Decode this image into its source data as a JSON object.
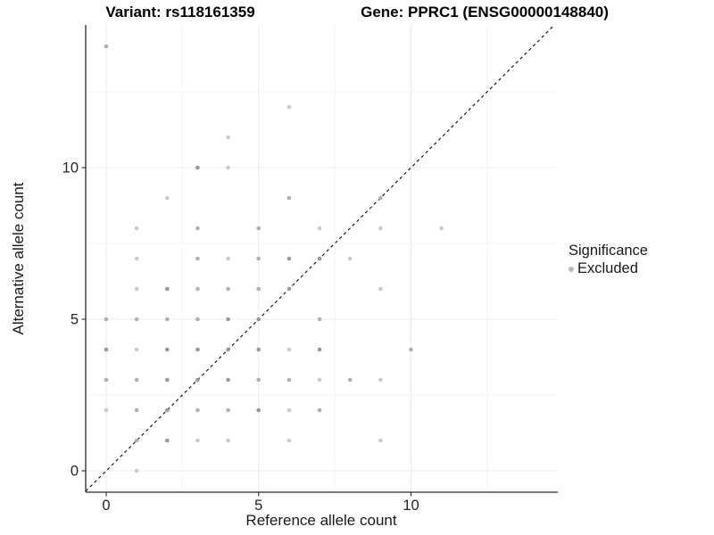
{
  "chart_data": {
    "type": "scatter",
    "title_variant": "Variant: rs118161359",
    "title_gene": "Gene: PPRC1 (ENSG00000148840)",
    "xlabel": "Reference allele count",
    "ylabel": "Alternative allele count",
    "x_ticks": [
      0,
      5,
      10
    ],
    "y_ticks": [
      0,
      5,
      10
    ],
    "x_minor_gridlines": [
      2.5,
      7.5,
      12.5
    ],
    "y_minor_gridlines": [
      2.5,
      7.5,
      12.5
    ],
    "xlim": [
      -0.67,
      14.82
    ],
    "ylim": [
      -0.71,
      14.71
    ],
    "grid": true,
    "identity_line": {
      "equation": "y = x",
      "style": "dashed",
      "color": "#1a1a1a"
    },
    "legend": {
      "title": "Significance",
      "position": "right",
      "entries": [
        {
          "label": "Excluded",
          "color": "#b9b9b9"
        }
      ]
    },
    "point_colors": {
      "l": "#cbcbcb",
      "m": "#b0b0b0",
      "d": "#999999"
    },
    "points": [
      [
        0,
        14,
        "m"
      ],
      [
        6,
        12,
        "l"
      ],
      [
        4,
        11,
        "l"
      ],
      [
        3,
        10,
        "d"
      ],
      [
        4,
        10,
        "l"
      ],
      [
        2,
        9,
        "l"
      ],
      [
        6,
        9,
        "m"
      ],
      [
        9,
        9,
        "m"
      ],
      [
        1,
        8,
        "l"
      ],
      [
        3,
        8,
        "m"
      ],
      [
        5,
        8,
        "m"
      ],
      [
        7,
        8,
        "l"
      ],
      [
        9,
        8,
        "l"
      ],
      [
        11,
        8,
        "l"
      ],
      [
        1,
        7,
        "l"
      ],
      [
        3,
        7,
        "m"
      ],
      [
        4,
        7,
        "l"
      ],
      [
        5,
        7,
        "m"
      ],
      [
        6,
        7,
        "d"
      ],
      [
        7,
        7,
        "d"
      ],
      [
        8,
        7,
        "l"
      ],
      [
        1,
        6,
        "l"
      ],
      [
        2,
        6,
        "d"
      ],
      [
        3,
        6,
        "m"
      ],
      [
        4,
        6,
        "m"
      ],
      [
        5,
        6,
        "m"
      ],
      [
        6,
        6,
        "d"
      ],
      [
        9,
        6,
        "l"
      ],
      [
        0,
        5,
        "m"
      ],
      [
        1,
        5,
        "m"
      ],
      [
        2,
        5,
        "m"
      ],
      [
        3,
        5,
        "m"
      ],
      [
        4,
        5,
        "d"
      ],
      [
        5,
        5,
        "d"
      ],
      [
        7,
        5,
        "m"
      ],
      [
        0,
        4,
        "d"
      ],
      [
        1,
        4,
        "l"
      ],
      [
        2,
        4,
        "d"
      ],
      [
        3,
        4,
        "d"
      ],
      [
        4,
        4,
        "d"
      ],
      [
        5,
        4,
        "d"
      ],
      [
        6,
        4,
        "l"
      ],
      [
        7,
        4,
        "d"
      ],
      [
        10,
        4,
        "m"
      ],
      [
        0,
        3,
        "m"
      ],
      [
        1,
        3,
        "m"
      ],
      [
        2,
        3,
        "d"
      ],
      [
        3,
        3,
        "d"
      ],
      [
        4,
        3,
        "d"
      ],
      [
        5,
        3,
        "m"
      ],
      [
        6,
        3,
        "m"
      ],
      [
        7,
        3,
        "l"
      ],
      [
        8,
        3,
        "m"
      ],
      [
        9,
        3,
        "l"
      ],
      [
        0,
        2,
        "l"
      ],
      [
        1,
        2,
        "m"
      ],
      [
        2,
        2,
        "d"
      ],
      [
        3,
        2,
        "m"
      ],
      [
        4,
        2,
        "m"
      ],
      [
        5,
        2,
        "d"
      ],
      [
        6,
        2,
        "l"
      ],
      [
        7,
        2,
        "m"
      ],
      [
        1,
        1,
        "m"
      ],
      [
        2,
        1,
        "d"
      ],
      [
        3,
        1,
        "l"
      ],
      [
        4,
        1,
        "l"
      ],
      [
        6,
        1,
        "l"
      ],
      [
        9,
        1,
        "l"
      ],
      [
        1,
        0,
        "l"
      ]
    ],
    "style": {
      "grid_major_color": "#ececec",
      "grid_minor_color": "#f4f4f4",
      "axis_color": "#2b2b2b",
      "tick_label_color": "#262626"
    }
  }
}
